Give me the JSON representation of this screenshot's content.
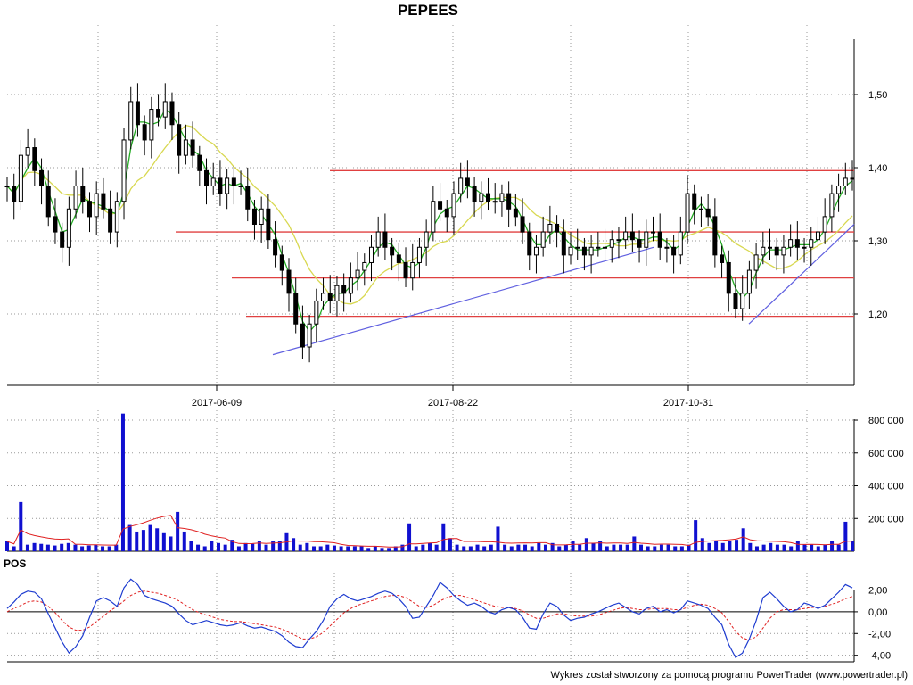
{
  "title": "PEPEES",
  "footer": "Wykres został stworzony za pomocą programu PowerTrader (www.powertrader.pl)",
  "chart_data": [
    {
      "type": "candlestick",
      "title": "PEPEES",
      "x_tick_labels": [
        "2017-06-09",
        "2017-08-22",
        "2017-10-31"
      ],
      "y_tick_labels": [
        "1,50",
        "1,40",
        "1,30",
        "1,20"
      ],
      "ylim": [
        1.1,
        1.57
      ],
      "grid": true,
      "colors": {
        "up": "#ffffff",
        "down": "#000000",
        "ma_short": "#22aa22",
        "ma_long": "#d8d850",
        "support": "#e04040",
        "trendline": "#6060e0"
      },
      "close_approx": [
        1.36,
        1.34,
        1.4,
        1.41,
        1.38,
        1.36,
        1.32,
        1.3,
        1.28,
        1.33,
        1.36,
        1.34,
        1.32,
        1.35,
        1.33,
        1.3,
        1.34,
        1.42,
        1.47,
        1.44,
        1.42,
        1.46,
        1.45,
        1.47,
        1.44,
        1.4,
        1.42,
        1.4,
        1.38,
        1.36,
        1.37,
        1.35,
        1.37,
        1.36,
        1.36,
        1.33,
        1.31,
        1.33,
        1.29,
        1.27,
        1.25,
        1.22,
        1.18,
        1.15,
        1.18,
        1.21,
        1.22,
        1.21,
        1.23,
        1.22,
        1.24,
        1.25,
        1.26,
        1.28,
        1.3,
        1.28,
        1.27,
        1.26,
        1.24,
        1.26,
        1.28,
        1.3,
        1.34,
        1.33,
        1.32,
        1.35,
        1.37,
        1.36,
        1.34,
        1.35,
        1.34,
        1.34,
        1.35,
        1.33,
        1.32,
        1.3,
        1.27,
        1.28,
        1.3,
        1.31,
        1.3,
        1.27,
        1.28,
        1.28,
        1.27,
        1.28,
        1.28,
        1.28,
        1.29,
        1.29,
        1.3,
        1.29,
        1.28,
        1.3,
        1.3,
        1.28,
        1.28,
        1.27,
        1.3,
        1.35,
        1.33,
        1.33,
        1.32,
        1.27,
        1.26,
        1.22,
        1.2,
        1.22,
        1.25,
        1.27,
        1.28,
        1.28,
        1.27,
        1.28,
        1.29,
        1.28,
        1.28,
        1.29,
        1.3,
        1.32,
        1.35,
        1.36,
        1.37,
        1.37
      ],
      "support_lines": [
        1.38,
        1.3,
        1.24,
        1.19
      ],
      "trendlines": [
        {
          "from": [
            "2017-06-23",
            1.14
          ],
          "to": [
            "2017-10-10",
            1.28
          ]
        },
        {
          "from": [
            "2017-11-20",
            1.18
          ],
          "to": [
            "2017-12-29",
            1.31
          ]
        }
      ]
    },
    {
      "type": "bar",
      "title": "",
      "y_tick_labels": [
        "800 000",
        "600 000",
        "400 000",
        "200 000"
      ],
      "ylim": [
        0,
        860000
      ],
      "colors": {
        "bar": "#1010d0",
        "ma": "#e02020"
      },
      "values": [
        60000,
        30000,
        300000,
        40000,
        50000,
        45000,
        40000,
        35000,
        45000,
        50000,
        40000,
        30000,
        35000,
        40000,
        30000,
        30000,
        40000,
        840000,
        160000,
        120000,
        130000,
        160000,
        140000,
        110000,
        90000,
        240000,
        120000,
        60000,
        40000,
        30000,
        60000,
        50000,
        40000,
        70000,
        30000,
        50000,
        45000,
        60000,
        40000,
        60000,
        60000,
        110000,
        80000,
        40000,
        50000,
        30000,
        30000,
        40000,
        35000,
        30000,
        30000,
        30000,
        30000,
        20000,
        30000,
        20000,
        20000,
        30000,
        40000,
        170000,
        30000,
        40000,
        50000,
        40000,
        170000,
        80000,
        40000,
        30000,
        30000,
        40000,
        30000,
        40000,
        150000,
        40000,
        30000,
        40000,
        40000,
        30000,
        50000,
        40000,
        50000,
        30000,
        40000,
        60000,
        40000,
        80000,
        50000,
        60000,
        30000,
        40000,
        40000,
        40000,
        90000,
        40000,
        30000,
        30000,
        40000,
        40000,
        30000,
        30000,
        40000,
        190000,
        80000,
        50000,
        60000,
        50000,
        60000,
        70000,
        140000,
        50000,
        30000,
        40000,
        50000,
        40000,
        40000,
        30000,
        60000,
        40000,
        40000,
        30000,
        40000,
        60000,
        40000,
        180000,
        60000
      ]
    },
    {
      "type": "line",
      "title": "POS",
      "y_tick_labels": [
        "2,00",
        "0,00",
        "-2,00",
        "-4,00"
      ],
      "ylim": [
        -4.6,
        3.6
      ],
      "colors": {
        "pos": "#1e3cd0",
        "signal": "#e02020",
        "zero": "#000000"
      },
      "series": [
        {
          "values": [
            0.3,
            0.9,
            1.6,
            1.9,
            1.8,
            1.2,
            -0.2,
            -1.5,
            -2.8,
            -3.8,
            -3.2,
            -2.2,
            -0.5,
            1.0,
            1.3,
            1.0,
            0.5,
            2.2,
            3.0,
            2.5,
            1.5,
            1.2,
            1.0,
            0.8,
            0.5,
            -0.2,
            -0.8,
            -1.2,
            -1.0,
            -0.8,
            -1.0,
            -1.2,
            -1.3,
            -1.2,
            -1.0,
            -1.3,
            -1.5,
            -1.4,
            -1.6,
            -1.8,
            -2.2,
            -2.8,
            -3.2,
            -3.3,
            -2.5,
            -1.8,
            -0.8,
            0.5,
            1.2,
            1.6,
            1.2,
            1.0,
            1.2,
            1.4,
            1.7,
            1.9,
            1.7,
            1.2,
            0.5,
            -0.6,
            -0.5,
            0.5,
            1.5,
            2.7,
            2.2,
            1.5,
            1.0,
            0.6,
            0.8,
            0.5,
            0.0,
            -0.2,
            0.2,
            0.4,
            0.2,
            -0.5,
            -1.5,
            -1.6,
            -0.2,
            0.8,
            0.5,
            -0.3,
            -0.8,
            -0.6,
            -0.5,
            -0.2,
            0.0,
            0.3,
            0.6,
            0.8,
            0.4,
            0.0,
            -0.2,
            0.3,
            0.5,
            0.0,
            0.2,
            -0.1,
            0.2,
            1.0,
            0.8,
            0.6,
            0.3,
            -0.5,
            -1.2,
            -3.0,
            -4.2,
            -3.8,
            -2.5,
            -0.8,
            1.3,
            1.8,
            1.2,
            0.5,
            0.0,
            0.2,
            0.8,
            0.6,
            0.3,
            0.6,
            1.2,
            1.8,
            2.5,
            2.2
          ]
        },
        {
          "values": [
            0.0,
            0.3,
            0.6,
            0.9,
            1.0,
            0.9,
            0.5,
            -0.1,
            -0.8,
            -1.4,
            -1.7,
            -1.7,
            -1.4,
            -0.9,
            -0.4,
            0.1,
            0.5,
            1.0,
            1.5,
            1.8,
            1.9,
            1.8,
            1.7,
            1.5,
            1.3,
            1.0,
            0.6,
            0.2,
            -0.1,
            -0.3,
            -0.5,
            -0.7,
            -0.8,
            -0.9,
            -0.9,
            -1.0,
            -1.1,
            -1.2,
            -1.3,
            -1.4,
            -1.6,
            -1.9,
            -2.2,
            -2.5,
            -2.5,
            -2.3,
            -1.9,
            -1.3,
            -0.7,
            -0.1,
            0.3,
            0.6,
            0.8,
            1.0,
            1.2,
            1.4,
            1.5,
            1.5,
            1.3,
            0.9,
            0.5,
            0.4,
            0.6,
            1.0,
            1.3,
            1.5,
            1.5,
            1.3,
            1.1,
            0.9,
            0.7,
            0.5,
            0.4,
            0.4,
            0.3,
            0.1,
            -0.3,
            -0.6,
            -0.6,
            -0.4,
            -0.2,
            -0.2,
            -0.3,
            -0.4,
            -0.4,
            -0.4,
            -0.3,
            -0.1,
            0.1,
            0.3,
            0.4,
            0.3,
            0.2,
            0.2,
            0.3,
            0.3,
            0.3,
            0.2,
            0.2,
            0.4,
            0.6,
            0.7,
            0.6,
            0.3,
            -0.1,
            -0.9,
            -1.8,
            -2.4,
            -2.6,
            -2.3,
            -1.5,
            -0.6,
            0.0,
            0.2,
            0.2,
            0.2,
            0.3,
            0.4,
            0.4,
            0.5,
            0.7,
            0.9,
            1.2,
            1.4
          ]
        }
      ]
    }
  ]
}
